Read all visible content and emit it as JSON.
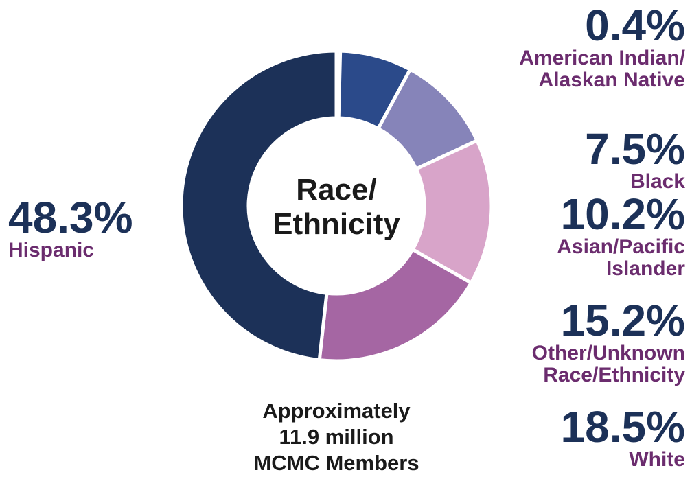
{
  "chart_data": {
    "type": "donut",
    "title": "Race/\nEthnicity",
    "subtitle": "Approximately\n11.9 million\nMCMC Members",
    "categories": [
      "American Indian/\nAlaskan Native",
      "Black",
      "Asian/Pacific\nIslander",
      "Other/Unknown\nRace/Ethnicity",
      "White",
      "Hispanic"
    ],
    "values": [
      0.4,
      7.5,
      10.2,
      15.2,
      18.5,
      48.3
    ],
    "value_labels": [
      "0.4%",
      "7.5%",
      "10.2%",
      "15.2%",
      "18.5%",
      "48.3%"
    ],
    "colors": [
      "#22407a",
      "#2b4a8a",
      "#8684b9",
      "#d8a4c9",
      "#a566a3",
      "#1c3158"
    ]
  }
}
